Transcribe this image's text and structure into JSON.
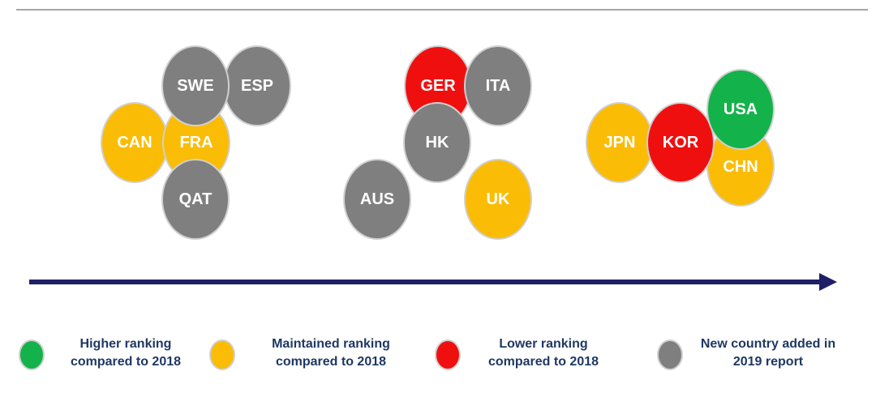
{
  "colors": {
    "higher": "#14b24a",
    "maintained": "#fbbc05",
    "lower": "#f00f0f",
    "new": "#7f7f7f",
    "arrow": "#1f1f66"
  },
  "bubbles": {
    "swe": "SWE",
    "esp": "ESP",
    "can": "CAN",
    "fra": "FRA",
    "qat": "QAT",
    "ger": "GER",
    "ita": "ITA",
    "hk": "HK",
    "aus": "AUS",
    "uk": "UK",
    "jpn": "JPN",
    "kor": "KOR",
    "usa": "USA",
    "chn": "CHN"
  },
  "legend": {
    "higher": "Higher ranking\ncompared to 2018",
    "maintained": "Maintained ranking\ncompared to 2018",
    "lower": "Lower ranking\ncompared to 2018",
    "new": "New country added in\n2019 report"
  }
}
